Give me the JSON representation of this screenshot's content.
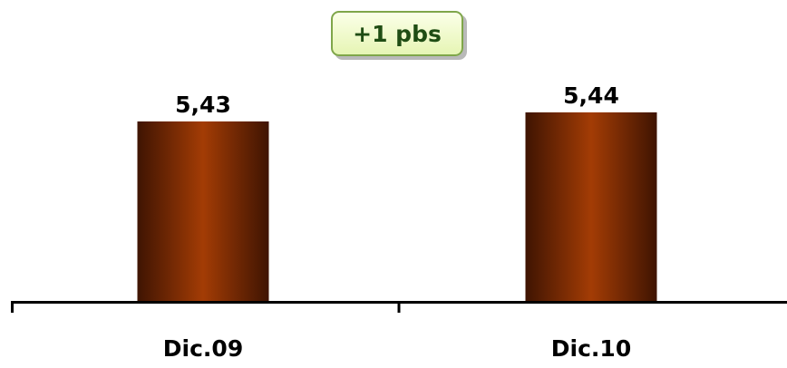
{
  "badge": {
    "label": "+1 pbs",
    "border_color": "#7fa64a",
    "text_color": "#1f4d14"
  },
  "chart_data": {
    "type": "bar",
    "categories": [
      "Dic.09",
      "Dic.10"
    ],
    "values": [
      5.43,
      5.44
    ],
    "value_labels": [
      "5,43",
      "5,44"
    ],
    "title": "",
    "xlabel": "",
    "ylabel": "",
    "y_axis_visible": false,
    "grid": false,
    "bar_colors": {
      "edge": "#3f1402",
      "center": "#a33c05"
    }
  }
}
